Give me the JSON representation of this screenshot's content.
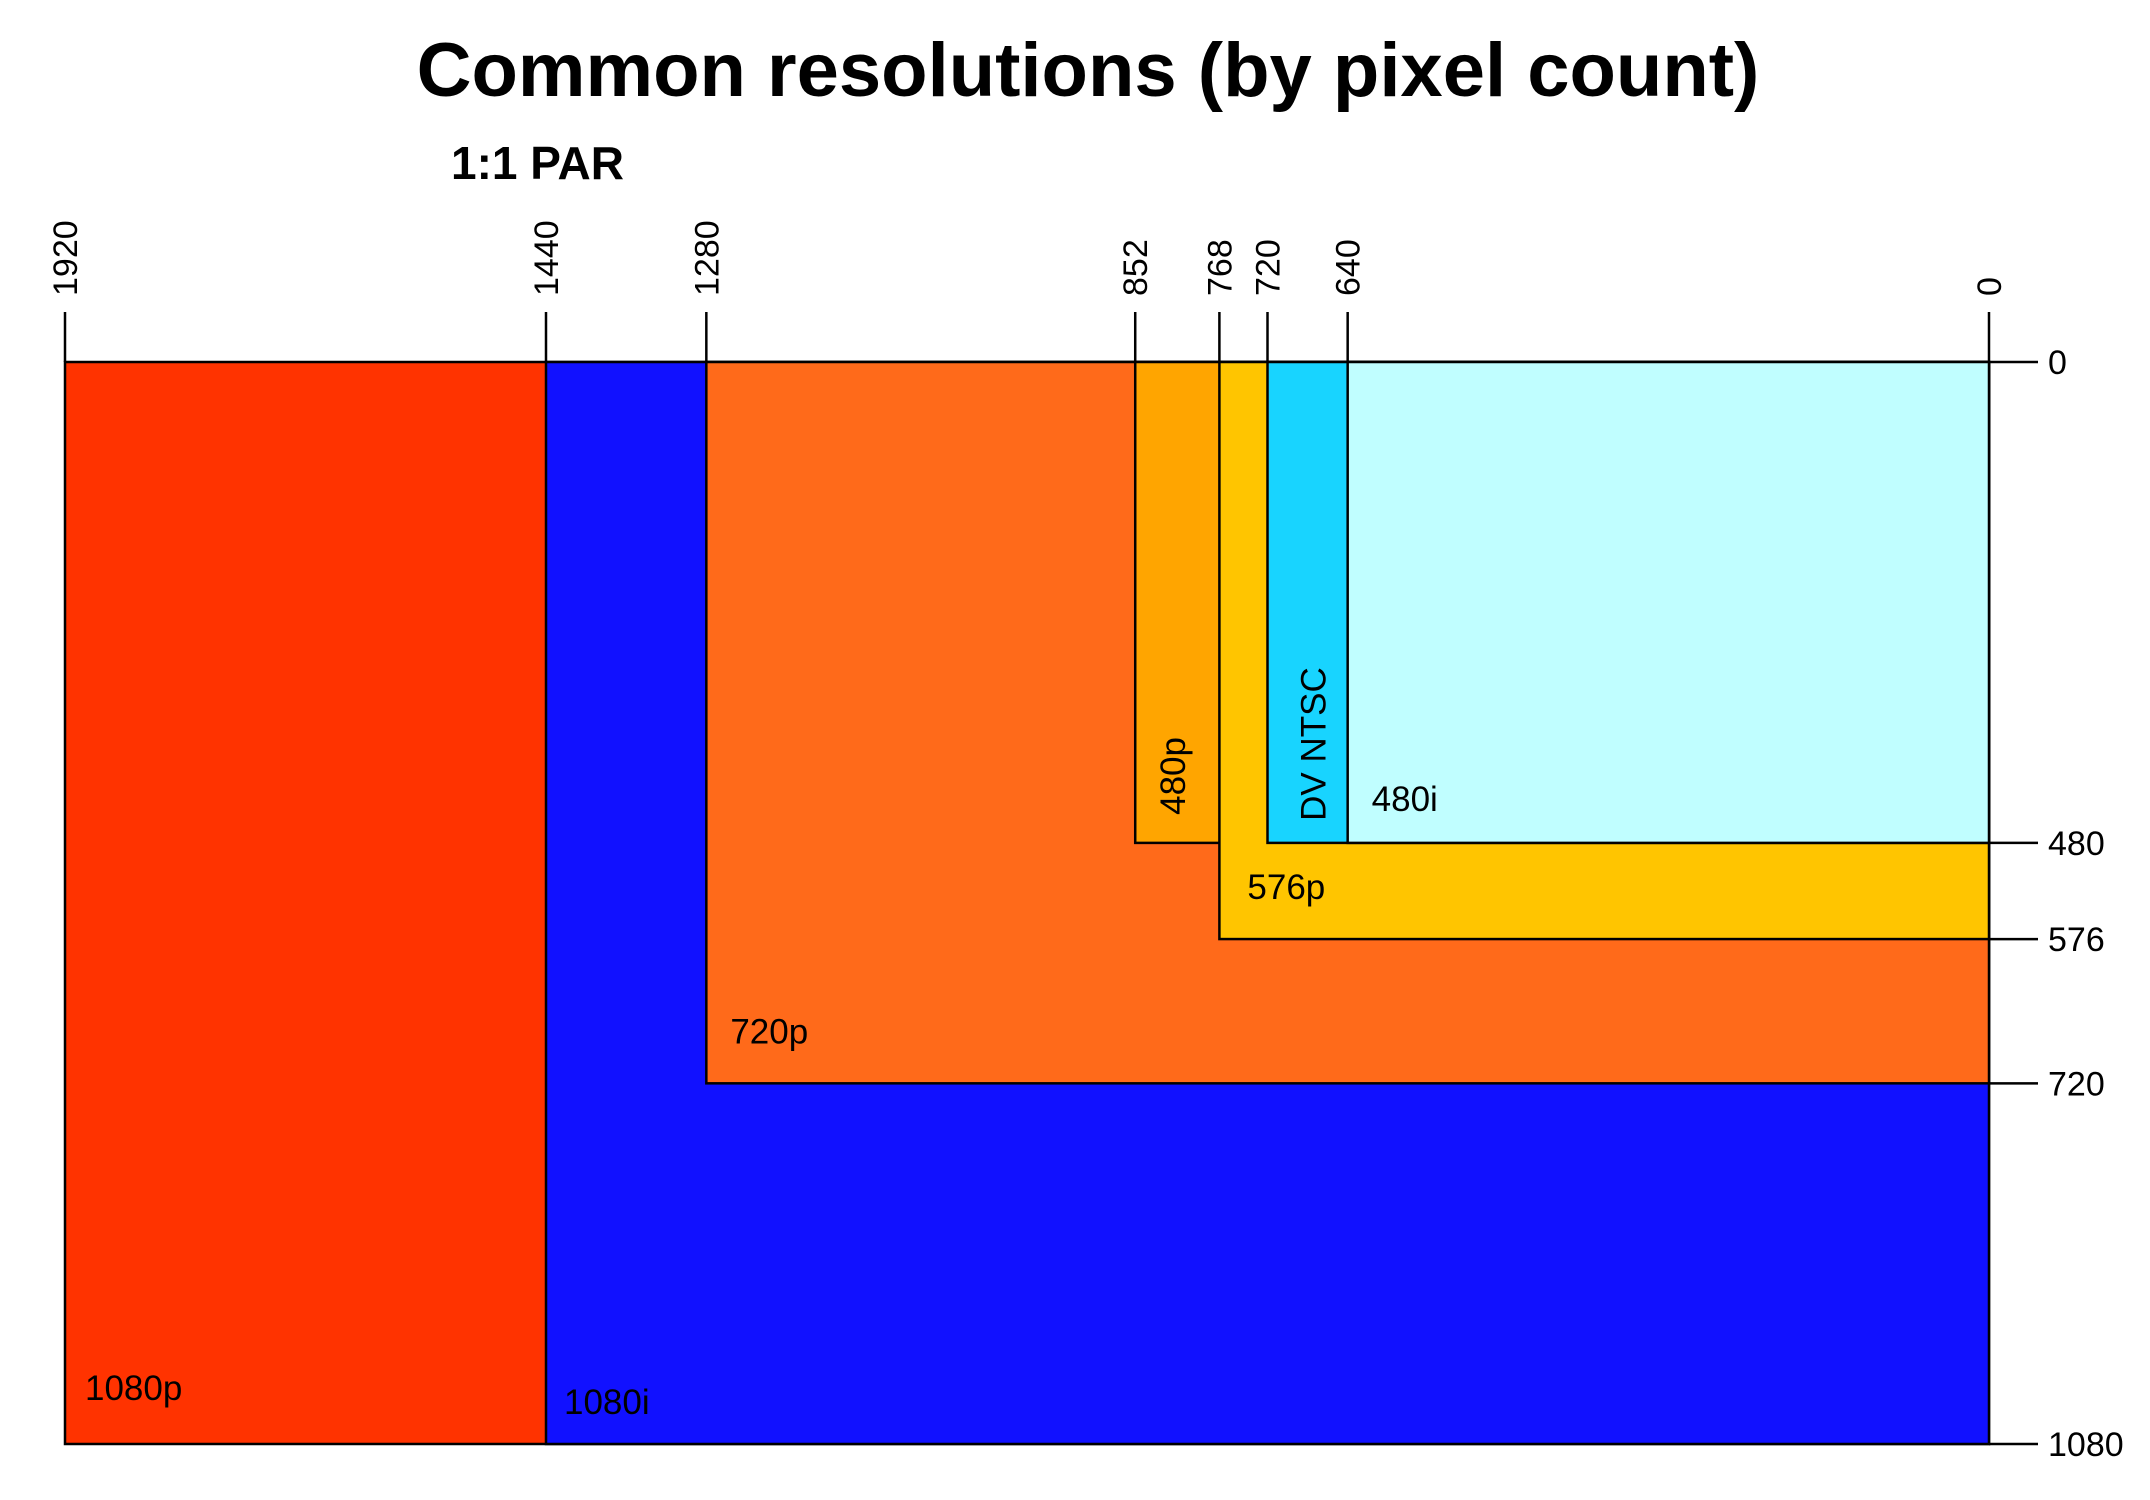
{
  "chart_data": {
    "type": "nested-rectangles",
    "title": "Common resolutions (by pixel count)",
    "subtitle": "1:1 PAR",
    "x_axis": {
      "direction": "right-to-left",
      "range": [
        0,
        1920
      ],
      "ticks": [
        1920,
        1440,
        1280,
        852,
        768,
        720,
        640,
        0
      ],
      "tick_labels": [
        "1920",
        "1440",
        "1280",
        "852",
        "768",
        "720",
        "640",
        "0"
      ],
      "position": "top"
    },
    "y_axis": {
      "direction": "top-to-bottom",
      "range": [
        0,
        1080
      ],
      "ticks": [
        0,
        480,
        576,
        720,
        1080
      ],
      "tick_labels": [
        "0",
        "480",
        "576",
        "720",
        "1080"
      ],
      "position": "right"
    },
    "regions": [
      {
        "label": "1080p",
        "width": 1920,
        "height": 1080,
        "color": "#ff3300"
      },
      {
        "label": "1080i",
        "width": 1440,
        "height": 1080,
        "color": "#1111ff"
      },
      {
        "label": "720p",
        "width": 1280,
        "height": 720,
        "color": "#ff6a1a"
      },
      {
        "label": "480p",
        "width": 852,
        "height": 480,
        "color": "#ffa500"
      },
      {
        "label": "576p",
        "width": 768,
        "height": 576,
        "color": "#ffc500"
      },
      {
        "label": "DV NTSC",
        "width": 720,
        "height": 480,
        "color": "#18d4ff"
      },
      {
        "label": "480i",
        "width": 640,
        "height": 480,
        "color": "#c0feff"
      }
    ]
  }
}
